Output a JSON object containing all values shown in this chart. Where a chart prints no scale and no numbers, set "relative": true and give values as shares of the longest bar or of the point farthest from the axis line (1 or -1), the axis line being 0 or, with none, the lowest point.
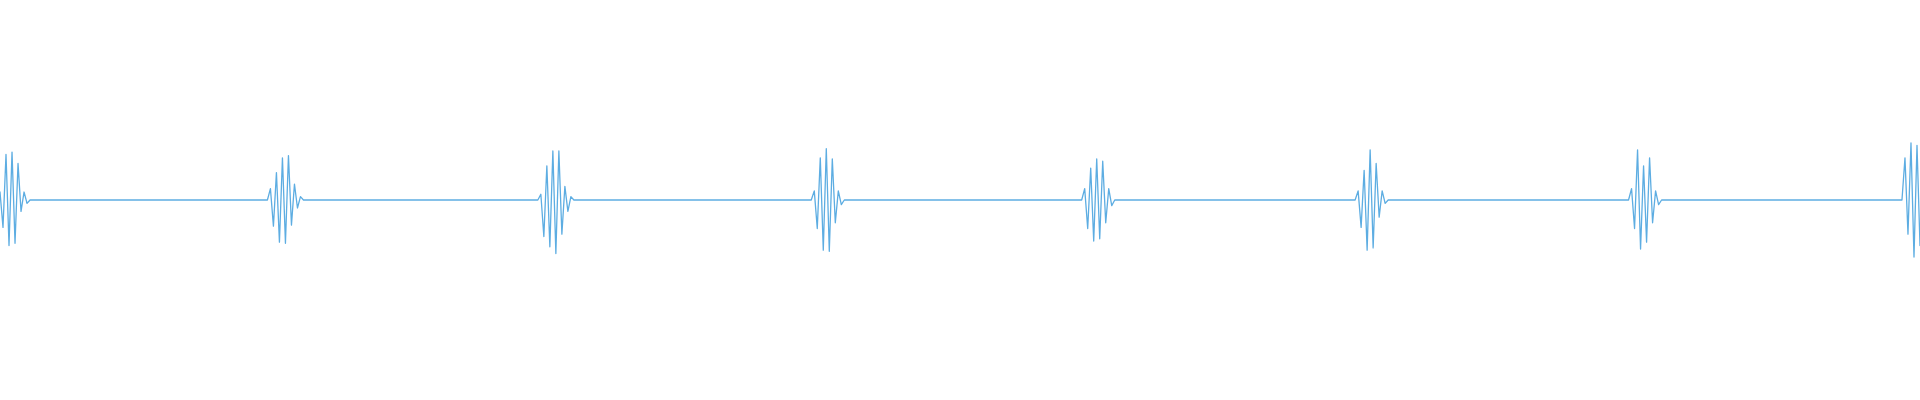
{
  "chart_data": {
    "type": "line",
    "relative": true,
    "color": "#5dade2",
    "categories": [
      null,
      null,
      null,
      null,
      null,
      null,
      null,
      null,
      null,
      null,
      null,
      null,
      null,
      null,
      null,
      null,
      null,
      null,
      null,
      null,
      null,
      null,
      null,
      null,
      null,
      null,
      null,
      null,
      null,
      null,
      null,
      null,
      null,
      null,
      null,
      null,
      null,
      null,
      null,
      null,
      null,
      null,
      null,
      null,
      null,
      null,
      null,
      null,
      null,
      null,
      null,
      null,
      null,
      null,
      null,
      null,
      null,
      null,
      null,
      null,
      null,
      null,
      null,
      null,
      null,
      null,
      null,
      null,
      null,
      null,
      null,
      null,
      null,
      null,
      null,
      null,
      null,
      null,
      null,
      null,
      null,
      null,
      null,
      null,
      null,
      null,
      null,
      null,
      null,
      null,
      null,
      null,
      null,
      null,
      null,
      null,
      null,
      null,
      null,
      null,
      null,
      null,
      null,
      null,
      null,
      null,
      null,
      null,
      null,
      null,
      null,
      null,
      null,
      null,
      null,
      null,
      null,
      null,
      null,
      null,
      null,
      null,
      null,
      null,
      null,
      null,
      null,
      null,
      null,
      null,
      null,
      null,
      null,
      null,
      null,
      null,
      null,
      null,
      null,
      null,
      null,
      null,
      null,
      null,
      null,
      null,
      null,
      null,
      null,
      null,
      null,
      null,
      null,
      null,
      null,
      null,
      null,
      null,
      null,
      null,
      null,
      null,
      null,
      null,
      null,
      null,
      null,
      null,
      null,
      null,
      null,
      null,
      null,
      null,
      null,
      null,
      null,
      null,
      null,
      null,
      null,
      null,
      null,
      null,
      null,
      null,
      null,
      null,
      null,
      null,
      null,
      null,
      null,
      null,
      null,
      null,
      null,
      null,
      null,
      null,
      null,
      null,
      null,
      null,
      null,
      null,
      null,
      null,
      null,
      null,
      null,
      null,
      null,
      null,
      null,
      null,
      null,
      null,
      null,
      null,
      null,
      null,
      null,
      null,
      null,
      null,
      null,
      null,
      null,
      null,
      null,
      null,
      null,
      null,
      null,
      null,
      null,
      null,
      null,
      null,
      null,
      null,
      null,
      null,
      null,
      null,
      null,
      null,
      null,
      null,
      null,
      null,
      null,
      null,
      null,
      null,
      null,
      null,
      null,
      null,
      null,
      null,
      null,
      null,
      null,
      null,
      null,
      null,
      null,
      null,
      null,
      null,
      null,
      null,
      null,
      null,
      null,
      null,
      null,
      null,
      null,
      null,
      null,
      null,
      null,
      null,
      null,
      null,
      null,
      null,
      null,
      null,
      null,
      null,
      null,
      null,
      null,
      null,
      null,
      null,
      null,
      null,
      null,
      null,
      null,
      null,
      null,
      null,
      null,
      null,
      null,
      null,
      null,
      null,
      null,
      null,
      null,
      null,
      null,
      null,
      null,
      null,
      null,
      null,
      null,
      null,
      null,
      null,
      null,
      null,
      null,
      null,
      null,
      null,
      null,
      null,
      null,
      null,
      null,
      null,
      null,
      null,
      null,
      null,
      null,
      null,
      null,
      null,
      null,
      null,
      null,
      null,
      null,
      null,
      null,
      null,
      null,
      null,
      null,
      null,
      null,
      null,
      null,
      null,
      null,
      null,
      null,
      null,
      null,
      null,
      null,
      null,
      null,
      null,
      null,
      null,
      null,
      null,
      null,
      null,
      null,
      null,
      null,
      null,
      null,
      null,
      null,
      null,
      null,
      null,
      null,
      null,
      null,
      null,
      null,
      null,
      null,
      null,
      null,
      null,
      null,
      null,
      null,
      null,
      null,
      null,
      null,
      null,
      null,
      null,
      null,
      null,
      null,
      null,
      null,
      null,
      null,
      null,
      null,
      null,
      null,
      null,
      null,
      null,
      null,
      null,
      null,
      null,
      null,
      null,
      null,
      null,
      null,
      null,
      null,
      null,
      null,
      null,
      null,
      null,
      null,
      null,
      null,
      null,
      null,
      null,
      null,
      null,
      null,
      null,
      null,
      null,
      null,
      null,
      null,
      null,
      null,
      null,
      null,
      null,
      null,
      null,
      null,
      null,
      null,
      null,
      null,
      null,
      null,
      null,
      null,
      null,
      null,
      null,
      null,
      null,
      null,
      null,
      null,
      null,
      null,
      null,
      null,
      null,
      null,
      null,
      null,
      null,
      null,
      null,
      null,
      null,
      null,
      null,
      null,
      null,
      null,
      null,
      null,
      null,
      null,
      null,
      null,
      null,
      null,
      null,
      null,
      null,
      null,
      null,
      null,
      null,
      null,
      null,
      null,
      null,
      null,
      null,
      null,
      null,
      null,
      null,
      null,
      null,
      null,
      null,
      null,
      null,
      null,
      null,
      null,
      null,
      null,
      null,
      null,
      null,
      null,
      null,
      null,
      null,
      null,
      null,
      null,
      null,
      null,
      null,
      null,
      null,
      null,
      null,
      null,
      null,
      null,
      null,
      null,
      null,
      null,
      null,
      null,
      null,
      null,
      null,
      null,
      null,
      null,
      null,
      null,
      null,
      null,
      null,
      null,
      null,
      null,
      null,
      null,
      null,
      null,
      null,
      null,
      null,
      null,
      null,
      null,
      null,
      null,
      null,
      null,
      null,
      null,
      null,
      null,
      null,
      null,
      null,
      null,
      null,
      null,
      null,
      null,
      null,
      null,
      null,
      null,
      null,
      null,
      null,
      null,
      null,
      null,
      null,
      null,
      null,
      null,
      null,
      null,
      null,
      null,
      null,
      null,
      null,
      null,
      null,
      null,
      null,
      null,
      null,
      null,
      null,
      null,
      null,
      null,
      null,
      null,
      null,
      null,
      null,
      null,
      null,
      null,
      null
    ],
    "values": [
      0.57,
      0.26,
      0.9,
      0.1,
      0.92,
      0.12,
      0.82,
      0.4,
      0.57,
      0.47,
      0.5,
      0.5,
      0.5,
      0.5,
      0.5,
      0.5,
      0.5,
      0.5,
      0.5,
      0.5,
      0.5,
      0.5,
      0.5,
      0.5,
      0.5,
      0.5,
      0.5,
      0.5,
      0.5,
      0.5,
      0.5,
      0.5,
      0.5,
      0.5,
      0.5,
      0.5,
      0.5,
      0.5,
      0.5,
      0.5,
      0.5,
      0.5,
      0.5,
      0.5,
      0.5,
      0.5,
      0.5,
      0.5,
      0.5,
      0.5,
      0.5,
      0.5,
      0.5,
      0.5,
      0.5,
      0.5,
      0.5,
      0.5,
      0.5,
      0.5,
      0.5,
      0.5,
      0.5,
      0.5,
      0.5,
      0.5,
      0.5,
      0.5,
      0.5,
      0.5,
      0.5,
      0.5,
      0.5,
      0.5,
      0.5,
      0.5,
      0.5,
      0.5,
      0.5,
      0.5,
      0.5,
      0.5,
      0.5,
      0.5,
      0.5,
      0.5,
      0.5,
      0.5,
      0.5,
      0.5,
      0.6,
      0.27,
      0.74,
      0.13,
      0.87,
      0.12,
      0.89,
      0.28,
      0.64,
      0.43,
      0.53,
      0.5,
      0.5,
      0.5,
      0.5,
      0.5,
      0.5,
      0.5,
      0.5,
      0.5,
      0.5,
      0.5,
      0.5,
      0.5,
      0.5,
      0.5,
      0.5,
      0.5,
      0.5,
      0.5,
      0.5,
      0.5,
      0.5,
      0.5,
      0.5,
      0.5,
      0.5,
      0.5,
      0.5,
      0.5,
      0.5,
      0.5,
      0.5,
      0.5,
      0.5,
      0.5,
      0.5,
      0.5,
      0.5,
      0.5,
      0.5,
      0.5,
      0.5,
      0.5,
      0.5,
      0.5,
      0.5,
      0.5,
      0.5,
      0.5,
      0.5,
      0.5,
      0.5,
      0.5,
      0.5,
      0.5,
      0.5,
      0.5,
      0.5,
      0.5,
      0.5,
      0.5,
      0.5,
      0.5,
      0.5,
      0.5,
      0.5,
      0.5,
      0.5,
      0.5,
      0.5,
      0.5,
      0.5,
      0.5,
      0.5,
      0.5,
      0.5,
      0.5,
      0.5,
      0.5,
      0.55,
      0.18,
      0.8,
      0.09,
      0.93,
      0.03,
      0.93,
      0.2,
      0.62,
      0.4,
      0.53,
      0.5,
      0.5,
      0.5,
      0.5,
      0.5,
      0.5,
      0.5,
      0.5,
      0.5,
      0.5,
      0.5,
      0.5,
      0.5,
      0.5,
      0.5,
      0.5,
      0.5,
      0.5,
      0.5,
      0.5,
      0.5,
      0.5,
      0.5,
      0.5,
      0.5,
      0.5,
      0.5,
      0.5,
      0.5,
      0.5,
      0.5,
      0.5,
      0.5,
      0.5,
      0.5,
      0.5,
      0.5,
      0.5,
      0.5,
      0.5,
      0.5,
      0.5,
      0.5,
      0.5,
      0.5,
      0.5,
      0.5,
      0.5,
      0.5,
      0.5,
      0.5,
      0.5,
      0.5,
      0.5,
      0.5,
      0.5,
      0.5,
      0.5,
      0.5,
      0.5,
      0.5,
      0.5,
      0.5,
      0.5,
      0.5,
      0.5,
      0.5,
      0.5,
      0.5,
      0.5,
      0.5,
      0.5,
      0.5,
      0.5,
      0.5,
      0.5,
      0.5,
      0.5,
      0.5,
      0.5,
      0.58,
      0.25,
      0.87,
      0.06,
      0.95,
      0.05,
      0.86,
      0.3,
      0.58,
      0.46,
      0.5,
      0.5,
      0.5,
      0.5,
      0.5,
      0.5,
      0.5,
      0.5,
      0.5,
      0.5,
      0.5,
      0.5,
      0.5,
      0.5,
      0.5,
      0.5,
      0.5,
      0.5,
      0.5,
      0.5,
      0.5,
      0.5,
      0.5,
      0.5,
      0.5,
      0.5,
      0.5,
      0.5,
      0.5,
      0.5,
      0.5,
      0.5,
      0.5,
      0.5,
      0.5,
      0.5,
      0.5,
      0.5,
      0.5,
      0.5,
      0.5,
      0.5,
      0.5,
      0.5,
      0.5,
      0.5,
      0.5,
      0.5,
      0.5,
      0.5,
      0.5,
      0.5,
      0.5,
      0.5,
      0.5,
      0.5,
      0.5,
      0.5,
      0.5,
      0.5,
      0.5,
      0.5,
      0.5,
      0.5,
      0.5,
      0.5,
      0.5,
      0.5,
      0.5,
      0.5,
      0.5,
      0.5,
      0.5,
      0.5,
      0.5,
      0.5,
      0.5,
      0.5,
      0.5,
      0.5,
      0.6,
      0.25,
      0.78,
      0.14,
      0.86,
      0.16,
      0.84,
      0.3,
      0.6,
      0.45,
      0.5,
      0.5,
      0.5,
      0.5,
      0.5,
      0.5,
      0.5,
      0.5,
      0.5,
      0.5,
      0.5,
      0.5,
      0.5,
      0.5,
      0.5,
      0.5,
      0.5,
      0.5,
      0.5,
      0.5,
      0.5,
      0.5,
      0.5,
      0.5,
      0.5,
      0.5,
      0.5,
      0.5,
      0.5,
      0.5,
      0.5,
      0.5,
      0.5,
      0.5,
      0.5,
      0.5,
      0.5,
      0.5,
      0.5,
      0.5,
      0.5,
      0.5,
      0.5,
      0.5,
      0.5,
      0.5,
      0.5,
      0.5,
      0.5,
      0.5,
      0.5,
      0.5,
      0.5,
      0.5,
      0.5,
      0.5,
      0.5,
      0.5,
      0.5,
      0.5,
      0.5,
      0.5,
      0.5,
      0.5,
      0.5,
      0.5,
      0.5,
      0.5,
      0.5,
      0.5,
      0.5,
      0.5,
      0.5,
      0.5,
      0.5,
      0.5,
      0.5,
      0.5,
      0.5,
      0.5,
      0.5,
      0.58,
      0.26,
      0.76,
      0.06,
      0.94,
      0.08,
      0.82,
      0.35,
      0.58,
      0.47,
      0.5,
      0.5,
      0.5,
      0.5,
      0.5,
      0.5,
      0.5,
      0.5,
      0.5,
      0.5,
      0.5,
      0.5,
      0.5,
      0.5,
      0.5,
      0.5,
      0.5,
      0.5,
      0.5,
      0.5,
      0.5,
      0.5,
      0.5,
      0.5,
      0.5,
      0.5,
      0.5,
      0.5,
      0.5,
      0.5,
      0.5,
      0.5,
      0.5,
      0.5,
      0.5,
      0.5,
      0.5,
      0.5,
      0.5,
      0.5,
      0.5,
      0.5,
      0.5,
      0.5,
      0.5,
      0.5,
      0.5,
      0.5,
      0.5,
      0.5,
      0.5,
      0.5,
      0.5,
      0.5,
      0.5,
      0.5,
      0.5,
      0.5,
      0.5,
      0.5,
      0.5,
      0.5,
      0.5,
      0.5,
      0.5,
      0.5,
      0.5,
      0.5,
      0.5,
      0.5,
      0.5,
      0.5,
      0.5,
      0.5,
      0.5,
      0.5,
      0.5,
      0.5,
      0.5,
      0.5,
      0.5,
      0.6,
      0.25,
      0.94,
      0.07,
      0.8,
      0.13,
      0.87,
      0.3,
      0.58,
      0.46,
      0.5,
      0.5,
      0.5,
      0.5,
      0.5,
      0.5,
      0.5,
      0.5,
      0.5,
      0.5,
      0.5,
      0.5,
      0.5,
      0.5,
      0.5,
      0.5,
      0.5,
      0.5,
      0.5,
      0.5,
      0.5,
      0.5,
      0.5,
      0.5,
      0.5,
      0.5,
      0.5,
      0.5,
      0.5,
      0.5,
      0.5,
      0.5,
      0.5,
      0.5,
      0.5,
      0.5,
      0.5,
      0.5,
      0.5,
      0.5,
      0.5,
      0.5,
      0.5,
      0.5,
      0.5,
      0.5,
      0.5,
      0.5,
      0.5,
      0.5,
      0.5,
      0.5,
      0.5,
      0.5,
      0.5,
      0.5,
      0.5,
      0.5,
      0.5,
      0.5,
      0.5,
      0.5,
      0.5,
      0.5,
      0.5,
      0.5,
      0.5,
      0.5,
      0.5,
      0.5,
      0.5,
      0.5,
      0.5,
      0.5,
      0.5,
      0.5,
      0.5,
      0.5,
      0.5,
      0.5,
      0.5,
      0.87,
      0.2,
      1,
      0,
      0.98,
      0.1
    ]
  }
}
